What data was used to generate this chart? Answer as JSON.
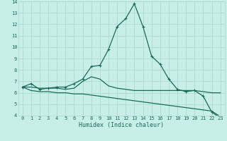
{
  "xlabel": "Humidex (Indice chaleur)",
  "x_values": [
    0,
    1,
    2,
    3,
    4,
    5,
    6,
    7,
    8,
    9,
    10,
    11,
    12,
    13,
    14,
    15,
    16,
    17,
    18,
    19,
    20,
    21,
    22,
    23
  ],
  "line1_y": [
    6.5,
    6.8,
    6.3,
    6.4,
    6.5,
    6.5,
    6.8,
    7.2,
    8.3,
    8.4,
    9.8,
    11.8,
    12.5,
    13.8,
    11.8,
    9.2,
    8.5,
    7.2,
    6.3,
    6.1,
    6.2,
    5.7,
    4.3,
    3.8
  ],
  "line2_y": [
    6.5,
    6.5,
    6.4,
    6.4,
    6.4,
    6.3,
    6.4,
    7.0,
    7.4,
    7.2,
    6.6,
    6.4,
    6.3,
    6.2,
    6.2,
    6.2,
    6.2,
    6.2,
    6.2,
    6.2,
    6.2,
    6.1,
    6.0,
    6.0
  ],
  "line3_y": [
    6.5,
    6.2,
    6.1,
    6.1,
    6.0,
    6.0,
    5.9,
    5.9,
    5.8,
    5.7,
    5.6,
    5.5,
    5.4,
    5.3,
    5.2,
    5.1,
    5.0,
    4.9,
    4.8,
    4.7,
    4.6,
    4.5,
    4.4,
    3.9
  ],
  "line_color": "#1a6b5a",
  "bg_color": "#c8eee8",
  "grid_color": "#aed8d0",
  "ylim": [
    4,
    14
  ],
  "xlim": [
    -0.5,
    23.5
  ],
  "yticks": [
    4,
    5,
    6,
    7,
    8,
    9,
    10,
    11,
    12,
    13,
    14
  ],
  "xticks": [
    0,
    1,
    2,
    3,
    4,
    5,
    6,
    7,
    8,
    9,
    10,
    11,
    12,
    13,
    14,
    15,
    16,
    17,
    18,
    19,
    20,
    21,
    22,
    23
  ]
}
